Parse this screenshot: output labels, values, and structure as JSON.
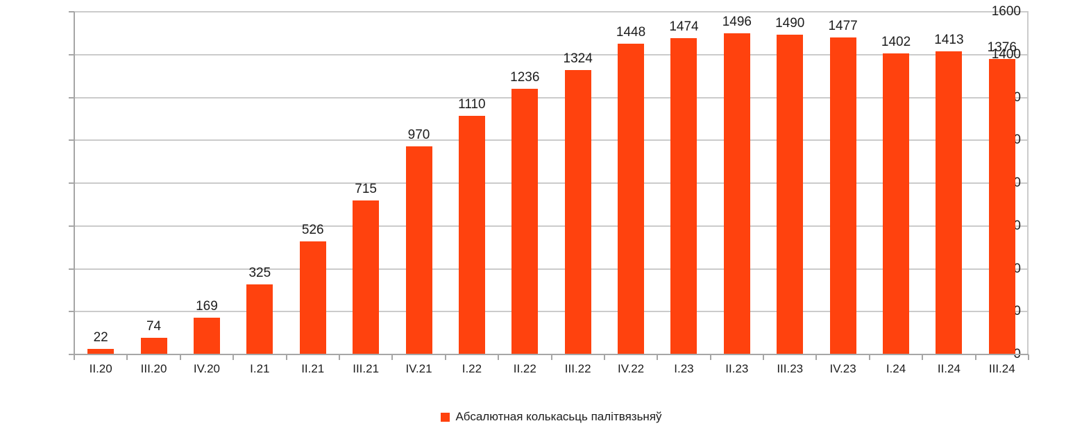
{
  "chart_data": {
    "type": "bar",
    "title": "",
    "xlabel": "",
    "ylabel": "",
    "categories": [
      "II.20",
      "III.20",
      "IV.20",
      "I.21",
      "II.21",
      "III.21",
      "IV.21",
      "I.22",
      "II.22",
      "III.22",
      "IV.22",
      "I.23",
      "II.23",
      "III.23",
      "IV.23",
      "I.24",
      "II.24",
      "III.24"
    ],
    "values": [
      22,
      74,
      169,
      325,
      526,
      715,
      970,
      1110,
      1236,
      1324,
      1448,
      1474,
      1496,
      1490,
      1477,
      1402,
      1413,
      1376
    ],
    "data_labels_shown": true,
    "ylim": [
      0,
      1600
    ],
    "yticks": [
      0,
      200,
      400,
      600,
      800,
      1000,
      1200,
      1400,
      1600
    ],
    "grid": "horizontal",
    "legend": {
      "position": "bottom-center",
      "label": "Абсалютная колькасьць палітвязьняў"
    },
    "colors": {
      "bar": "#FF420E",
      "gridline": "#CBCBCB",
      "axis": "#A6A6A6",
      "text": "#1C1C1C"
    }
  }
}
